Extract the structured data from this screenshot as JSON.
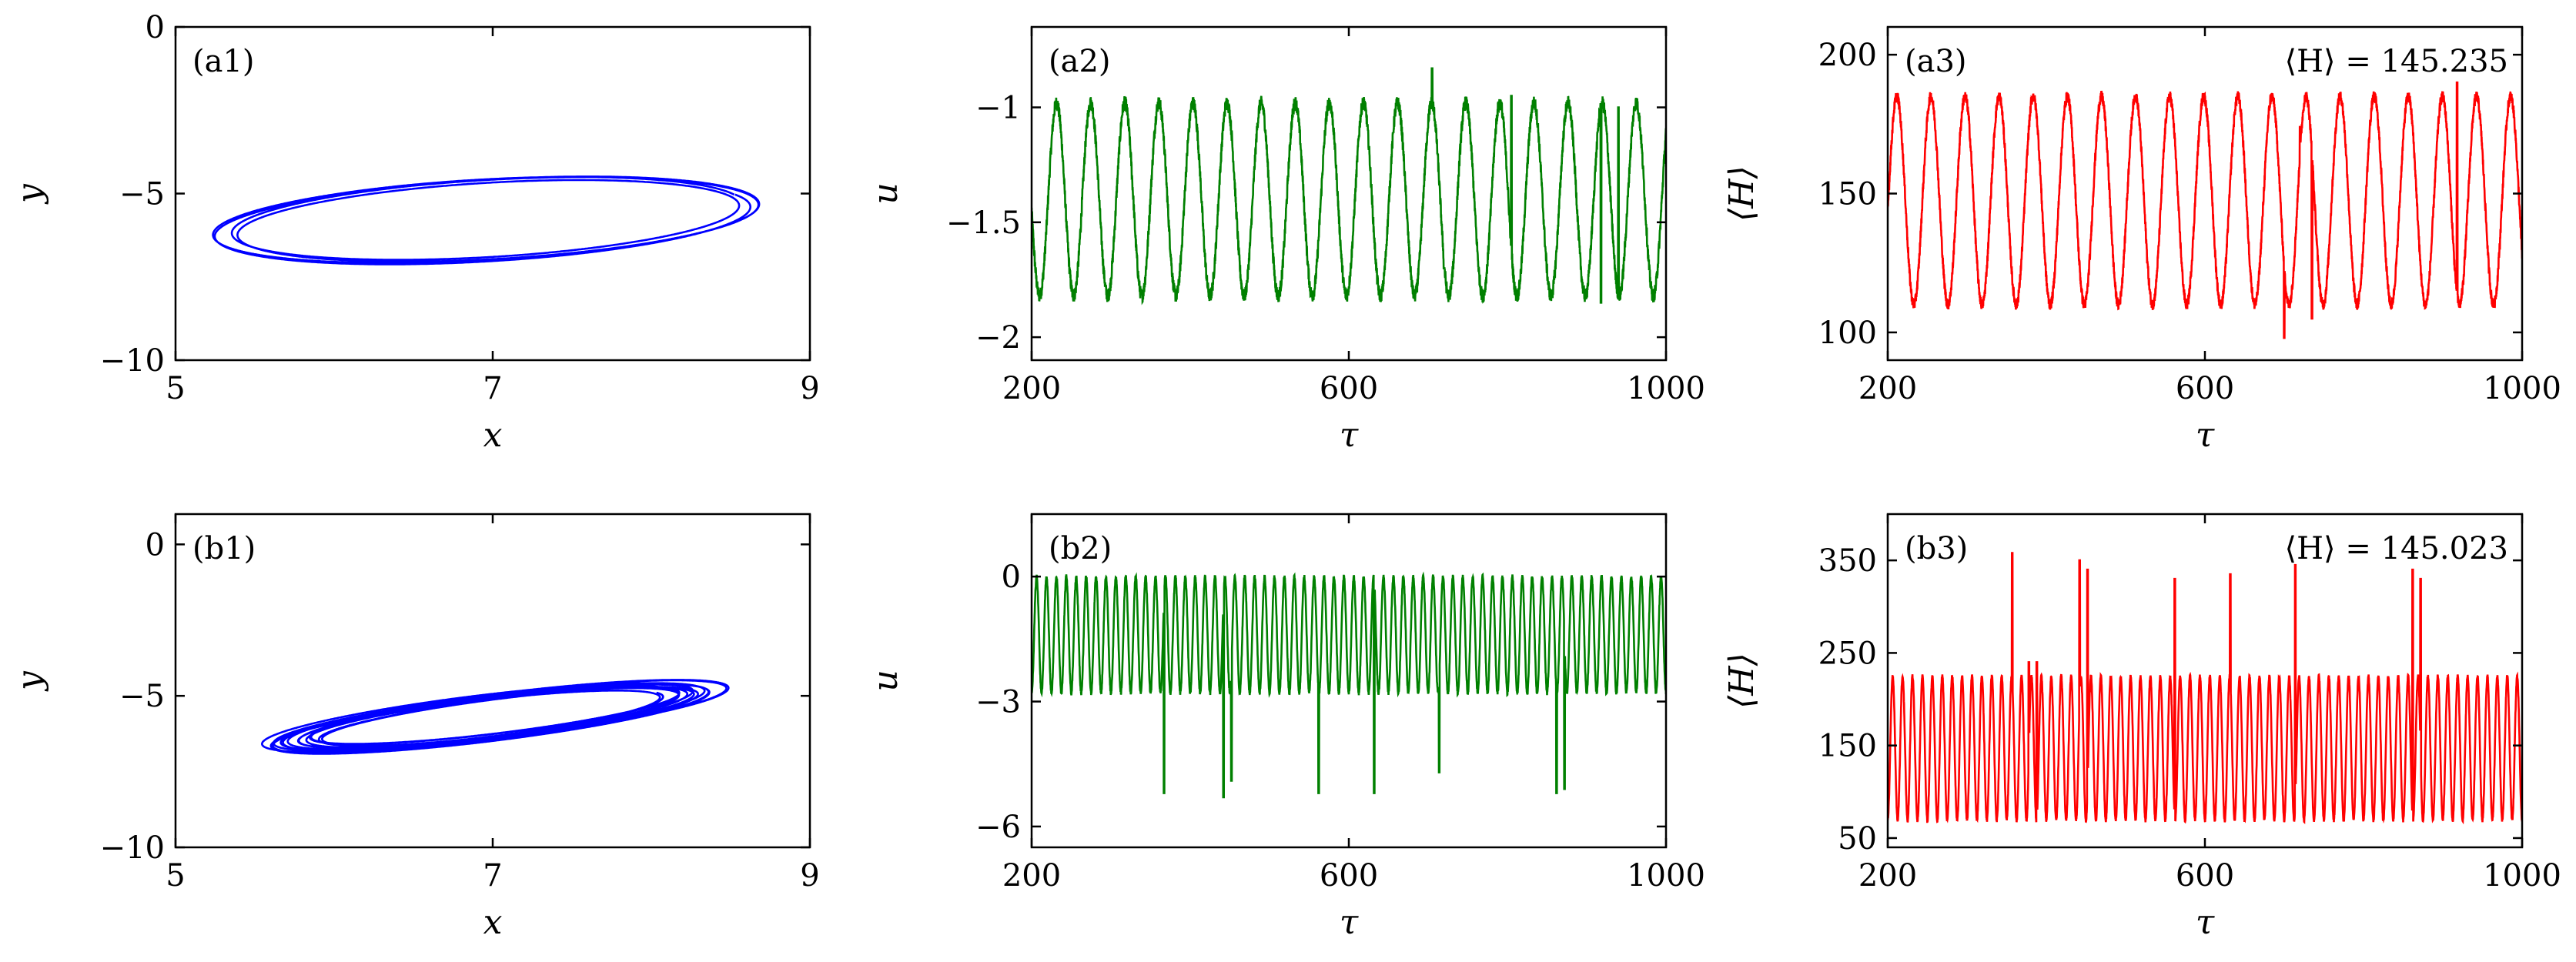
{
  "chart_data": [
    {
      "id": "a1",
      "type": "line",
      "label": "(a1)",
      "xlabel": "x",
      "ylabel": "y",
      "xlim": [
        5,
        9
      ],
      "ylim": [
        -10,
        0
      ],
      "xticks": [
        5,
        7,
        9
      ],
      "yticks": [
        -10,
        -5,
        0
      ],
      "color": "#0000ff",
      "annotation": "",
      "curve": {
        "kind": "ellipse",
        "cx": 6.95,
        "cy": -5.8,
        "rx": 1.75,
        "ry": 1.1,
        "tilt_deg": 26,
        "loops": 4,
        "spread": 0.05
      }
    },
    {
      "id": "a2",
      "type": "line",
      "label": "(a2)",
      "xlabel": "τ",
      "ylabel": "u",
      "xlim": [
        200,
        1000
      ],
      "ylim": [
        -2.1,
        -0.65
      ],
      "xticks": [
        200,
        600,
        1000
      ],
      "yticks": [
        -2.0,
        -1.5,
        -1.0
      ],
      "color": "#008000",
      "annotation": "",
      "signal": {
        "mean": -1.4,
        "amp": 0.42,
        "period": 43,
        "phase": 210,
        "noise": 0.03,
        "spikes": [
          [
            705,
            -0.83
          ],
          [
            720,
            -1.7
          ],
          [
            805,
            -0.95
          ],
          [
            918,
            -1.85
          ],
          [
            940,
            -1.0
          ]
        ]
      }
    },
    {
      "id": "a3",
      "type": "line",
      "label": "(a3)",
      "xlabel": "τ",
      "ylabel": "⟨H⟩",
      "xlim": [
        200,
        1000
      ],
      "ylim": [
        90,
        210
      ],
      "xticks": [
        200,
        600,
        1000
      ],
      "yticks": [
        100,
        150,
        200
      ],
      "color": "#ff0000",
      "annotation": "⟨H⟩ = 145.235",
      "signal": {
        "mean": 147.5,
        "amp": 37.5,
        "period": 43,
        "phase": 190,
        "noise": 2.0,
        "spikes": [
          [
            700,
            98
          ],
          [
            720,
            174
          ],
          [
            735,
            105
          ],
          [
            918,
            190
          ]
        ]
      }
    },
    {
      "id": "b1",
      "type": "line",
      "label": "(b1)",
      "xlabel": "x",
      "ylabel": "y",
      "xlim": [
        5,
        9
      ],
      "ylim": [
        -10,
        1
      ],
      "xticks": [
        5,
        7,
        9
      ],
      "yticks": [
        -10,
        -5,
        0
      ],
      "color": "#0000ff",
      "annotation": "",
      "curve": {
        "kind": "ellipse",
        "cx": 7.0,
        "cy": -5.7,
        "rx": 1.55,
        "ry": 0.55,
        "tilt_deg": 38,
        "loops": 14,
        "spread": 0.12
      }
    },
    {
      "id": "b2",
      "type": "line",
      "label": "(b2)",
      "xlabel": "τ",
      "ylabel": "u",
      "xlim": [
        200,
        1000
      ],
      "ylim": [
        -6.5,
        1.5
      ],
      "xticks": [
        200,
        600,
        1000
      ],
      "yticks": [
        -6,
        -3,
        0
      ],
      "color": "#008000",
      "annotation": "",
      "signal": {
        "mean": -1.4,
        "amp": 1.4,
        "period": 12.5,
        "phase": 200,
        "noise": 0.05,
        "spikes": [
          [
            367,
            -5.2
          ],
          [
            442,
            -5.3
          ],
          [
            452,
            -4.9
          ],
          [
            562,
            -5.2
          ],
          [
            632,
            -5.2
          ],
          [
            714,
            -4.7
          ],
          [
            862,
            -5.2
          ],
          [
            872,
            -5.1
          ]
        ]
      }
    },
    {
      "id": "b3",
      "type": "line",
      "label": "(b3)",
      "xlabel": "τ",
      "ylabel": "⟨H⟩",
      "xlim": [
        200,
        1000
      ],
      "ylim": [
        40,
        400
      ],
      "xticks": [
        200,
        600,
        1000
      ],
      "yticks": [
        50,
        150,
        250,
        350
      ],
      "color": "#ff0000",
      "annotation": "⟨H⟩ = 145.023",
      "signal": {
        "mean": 147,
        "amp": 78,
        "period": 12.5,
        "phase": 200,
        "noise": 2.0,
        "spikes": [
          [
            357,
            358
          ],
          [
            378,
            240
          ],
          [
            388,
            240
          ],
          [
            442,
            350
          ],
          [
            452,
            340
          ],
          [
            562,
            330
          ],
          [
            632,
            335
          ],
          [
            714,
            345
          ],
          [
            862,
            340
          ],
          [
            872,
            330
          ]
        ]
      }
    }
  ]
}
